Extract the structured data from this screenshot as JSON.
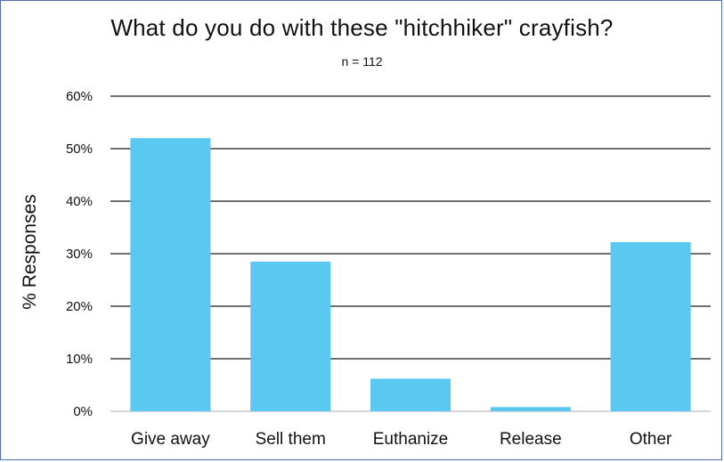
{
  "chart_data": {
    "type": "bar",
    "title": "What do you do with these \"hitchhiker\" crayfish?",
    "subtitle": "n = 112",
    "xlabel": "",
    "ylabel": "% Responses",
    "categories": [
      "Give away",
      "Sell them",
      "Euthanize",
      "Release",
      "Other"
    ],
    "values": [
      52,
      28.5,
      6.2,
      0.8,
      32.2
    ],
    "ylim": [
      0,
      60
    ],
    "yticks": [
      0,
      10,
      20,
      30,
      40,
      50,
      60
    ],
    "ytick_labels": [
      "0%",
      "10%",
      "20%",
      "30%",
      "40%",
      "50%",
      "60%"
    ],
    "bar_color": "#5bc8f1",
    "grid": true,
    "legend": "none"
  }
}
